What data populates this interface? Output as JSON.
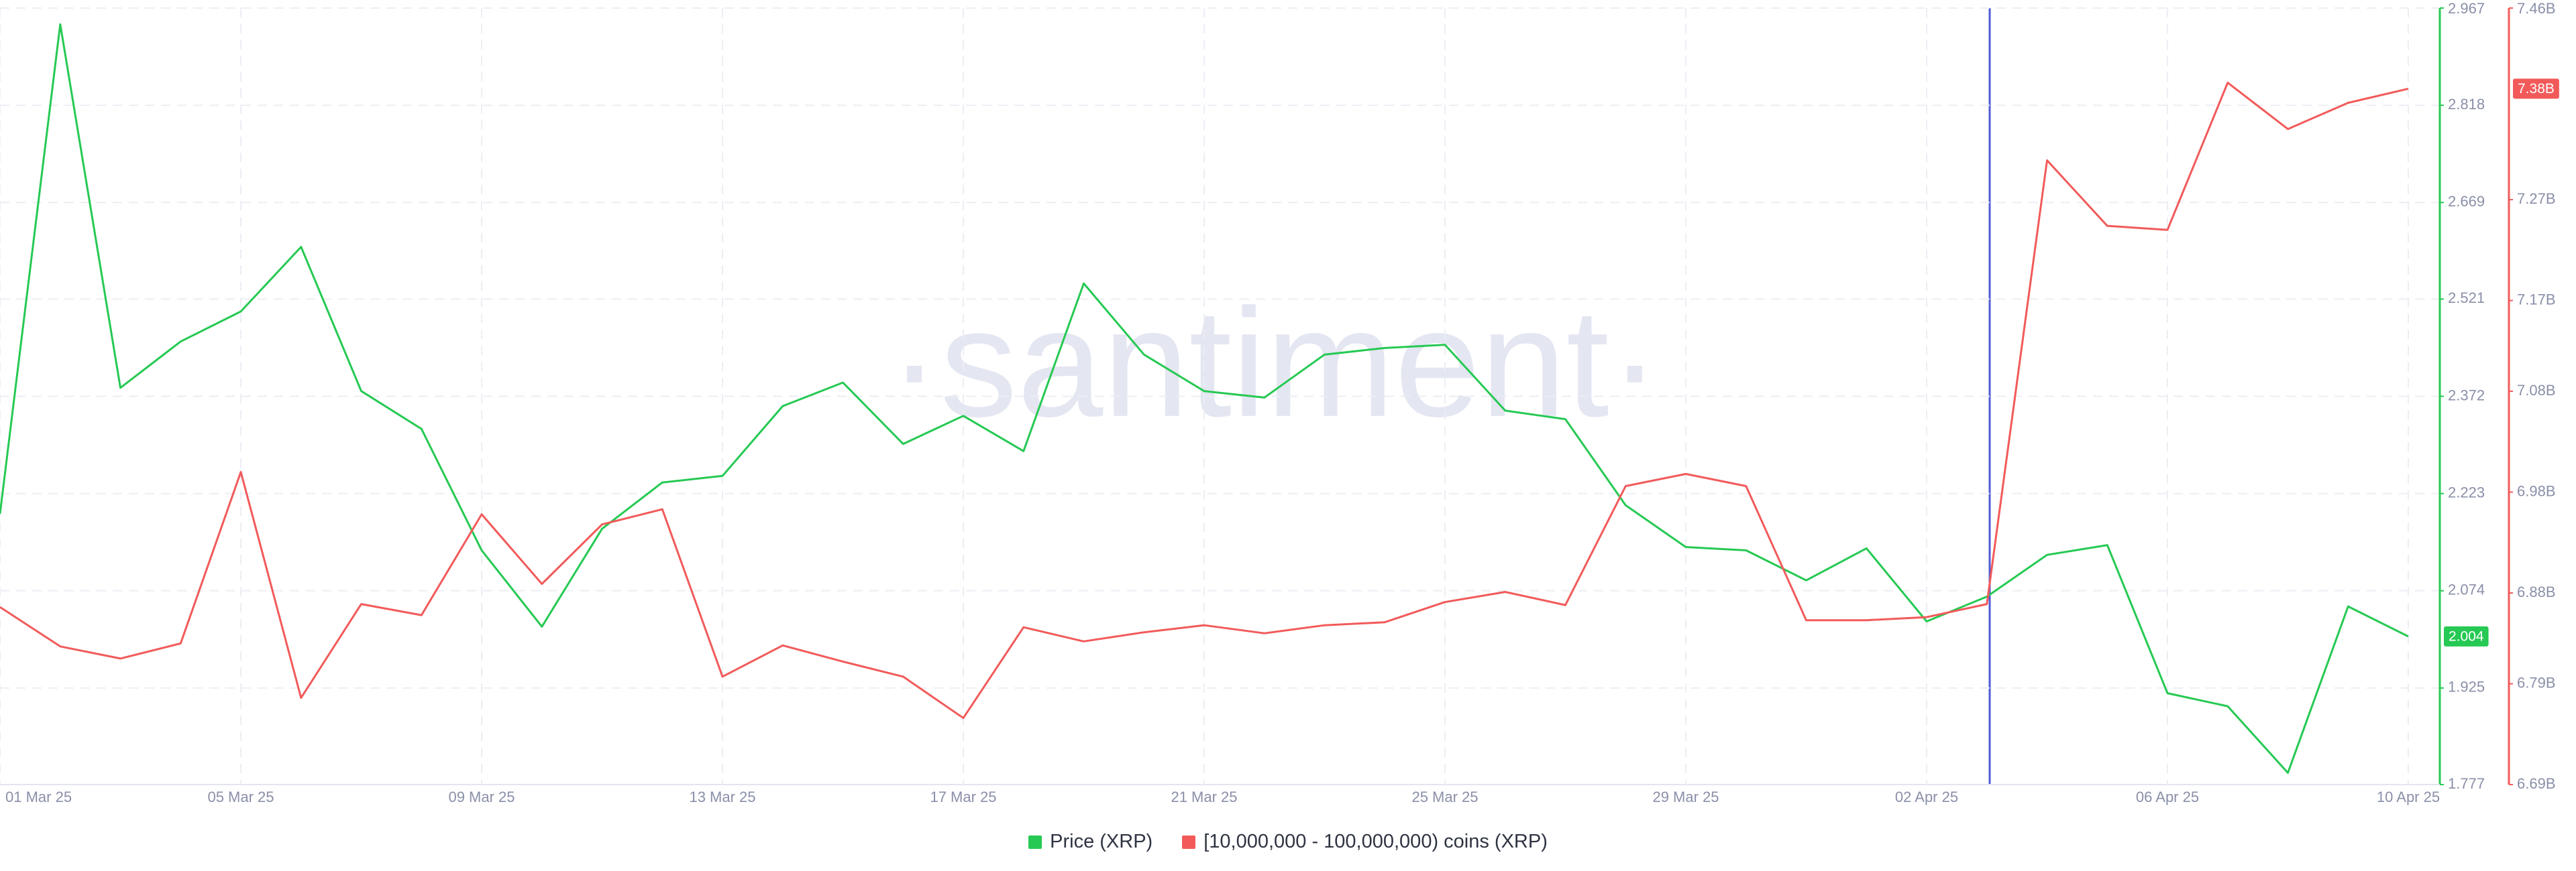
{
  "chart_data": {
    "type": "line",
    "watermark": "·santiment·",
    "categories": [
      "01 Mar 25",
      null,
      null,
      null,
      "05 Mar 25",
      null,
      null,
      null,
      "09 Mar 25",
      null,
      null,
      null,
      "13 Mar 25",
      null,
      null,
      null,
      "17 Mar 25",
      null,
      null,
      null,
      "21 Mar 25",
      null,
      null,
      null,
      "25 Mar 25",
      null,
      null,
      null,
      "29 Mar 25",
      null,
      null,
      null,
      "02 Apr 25",
      null,
      null,
      null,
      "06 Apr 25",
      null,
      null,
      null,
      "10 Apr 25"
    ],
    "series": [
      {
        "name": "Price (XRP)",
        "color": "#26c953",
        "axis": "y",
        "values": [
          2.192,
          2.942,
          2.385,
          2.456,
          2.502,
          2.601,
          2.38,
          2.322,
          2.136,
          2.019,
          2.169,
          2.24,
          2.25,
          2.357,
          2.393,
          2.299,
          2.342,
          2.288,
          2.545,
          2.436,
          2.38,
          2.37,
          2.436,
          2.446,
          2.451,
          2.35,
          2.337,
          2.205,
          2.141,
          2.136,
          2.09,
          2.139,
          2.027,
          2.065,
          2.129,
          2.144,
          1.917,
          1.897,
          1.795,
          2.05,
          2.004
        ]
      },
      {
        "name": "[10,000,000 - 100,000,000) coins (XRP)",
        "color": "#f25a5a",
        "axis": "y2",
        "values": [
          6.866,
          6.827,
          6.815,
          6.83,
          7.0,
          6.776,
          6.869,
          6.858,
          6.958,
          6.889,
          6.948,
          6.963,
          6.797,
          6.828,
          6.812,
          6.797,
          6.756,
          6.846,
          6.832,
          6.841,
          6.848,
          6.84,
          6.848,
          6.851,
          6.871,
          6.881,
          6.868,
          6.986,
          6.998,
          6.986,
          6.853,
          6.853,
          6.856,
          6.869,
          7.309,
          7.244,
          7.24,
          7.386,
          7.34,
          7.366,
          7.38
        ],
        "value_labels": [
          null,
          null,
          null,
          null,
          null,
          null,
          null,
          null,
          null,
          null,
          null,
          null,
          null,
          null,
          null,
          null,
          null,
          null,
          null,
          null,
          null,
          null,
          null,
          null,
          null,
          null,
          null,
          null,
          null,
          null,
          null,
          null,
          null,
          null,
          null,
          null,
          null,
          null,
          null,
          null,
          "7.38B"
        ]
      }
    ],
    "ylim": [
      1.777,
      2.967
    ],
    "yticks": [
      2.967,
      2.818,
      2.669,
      2.521,
      2.372,
      2.223,
      2.074,
      1.925,
      1.777
    ],
    "y2lim": [
      6.69,
      7.46
    ],
    "y2ticks": [
      {
        "value": 7.46,
        "label": "7.46B"
      },
      {
        "value": 7.27,
        "label": "7.27B"
      },
      {
        "value": 7.17,
        "label": "7.17B"
      },
      {
        "value": 7.08,
        "label": "7.08B"
      },
      {
        "value": 6.98,
        "label": "6.98B"
      },
      {
        "value": 6.88,
        "label": "6.88B"
      },
      {
        "value": 6.79,
        "label": "6.79B"
      },
      {
        "value": 6.69,
        "label": "6.69B"
      }
    ],
    "grid": true
  }
}
